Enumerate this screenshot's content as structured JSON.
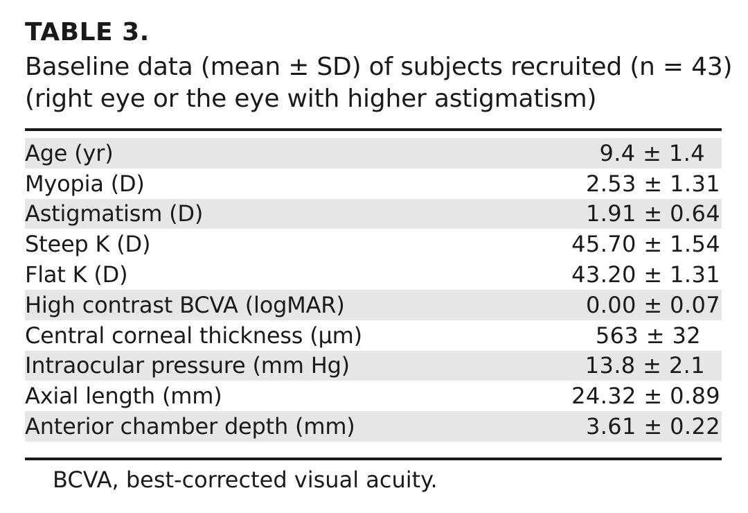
{
  "table_label": "TABLE 3.",
  "caption": {
    "line1": "Baseline data (mean ± SD) of subjects recruited (n = 43)",
    "line2": "(right eye or the eye with higher astigmatism)"
  },
  "rows": [
    {
      "label": "Age (yr)",
      "value": "9.4 ± 1.4 "
    },
    {
      "label": "Myopia (D)",
      "value": "2.53 ± 1.31"
    },
    {
      "label": "Astigmatism (D)",
      "value": "1.91 ± 0.64"
    },
    {
      "label": "Steep K (D)",
      "value": "45.70 ± 1.54"
    },
    {
      "label": "Flat K (D)",
      "value": "43.20 ± 1.31"
    },
    {
      "label": "High contrast BCVA (logMAR)",
      "value": "0.00 ± 0.07"
    },
    {
      "label": "Central corneal thickness (μm)",
      "value": "563 ± 32 "
    },
    {
      "label": "Intraocular pressure (mm Hg)",
      "value": "13.8 ± 2.1 "
    },
    {
      "label": "Axial length (mm)",
      "value": "24.32 ± 0.89"
    },
    {
      "label": "Anterior chamber depth (mm)",
      "value": "3.61 ± 0.22"
    }
  ],
  "footnote": "BCVA, best-corrected visual acuity.",
  "colors": {
    "text": "#1a1a1a",
    "row_shade": "#e6e6e6"
  }
}
